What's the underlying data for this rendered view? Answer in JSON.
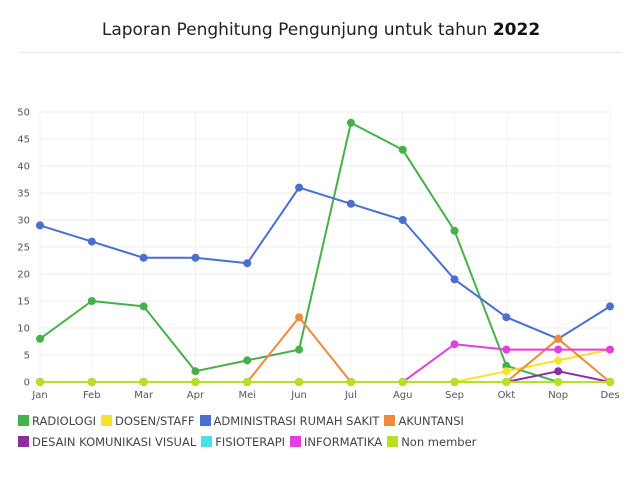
{
  "title": {
    "text": "Laporan Penghitung Pengunjung untuk tahun",
    "year": "2022"
  },
  "chart_data": {
    "type": "line",
    "categories": [
      "Jan",
      "Feb",
      "Mar",
      "Apr",
      "Mei",
      "Jun",
      "Jul",
      "Agu",
      "Sep",
      "Okt",
      "Nop",
      "Des"
    ],
    "ylim": [
      0,
      50
    ],
    "yticks": [
      0,
      5,
      10,
      15,
      20,
      25,
      30,
      35,
      40,
      45,
      50
    ],
    "grid": true,
    "legend_position": "bottom",
    "series": [
      {
        "name": "RADIOLOGI",
        "color": "#46b04a",
        "values": [
          8,
          15,
          14,
          2,
          4,
          6,
          48,
          43,
          28,
          3,
          0,
          0
        ]
      },
      {
        "name": "DOSEN/STAFF",
        "color": "#f7e22a",
        "values": [
          0,
          0,
          0,
          0,
          0,
          0,
          0,
          0,
          0,
          2,
          4,
          6
        ]
      },
      {
        "name": "ADMINISTRASI RUMAH SAKIT",
        "color": "#4a6fcf",
        "values": [
          29,
          26,
          23,
          23,
          22,
          36,
          33,
          30,
          19,
          12,
          8,
          14
        ]
      },
      {
        "name": "AKUNTANSI",
        "color": "#ed8a3c",
        "values": [
          0,
          0,
          0,
          0,
          0,
          12,
          0,
          0,
          0,
          0,
          8,
          0
        ]
      },
      {
        "name": "DESAIN KOMUNIKASI VISUAL",
        "color": "#8e2ca6",
        "values": [
          0,
          0,
          0,
          0,
          0,
          0,
          0,
          0,
          0,
          0,
          2,
          0
        ]
      },
      {
        "name": "FISIOTERAPI",
        "color": "#4fdde7",
        "values": [
          0,
          0,
          0,
          0,
          0,
          0,
          0,
          0,
          0,
          0,
          0,
          0
        ]
      },
      {
        "name": "INFORMATIKA",
        "color": "#e23fdc",
        "values": [
          0,
          0,
          0,
          0,
          0,
          0,
          0,
          0,
          7,
          6,
          6,
          6
        ]
      },
      {
        "name": "Non member",
        "color": "#b8e21f",
        "values": [
          0,
          0,
          0,
          0,
          0,
          0,
          0,
          0,
          0,
          0,
          0,
          0
        ]
      }
    ]
  }
}
